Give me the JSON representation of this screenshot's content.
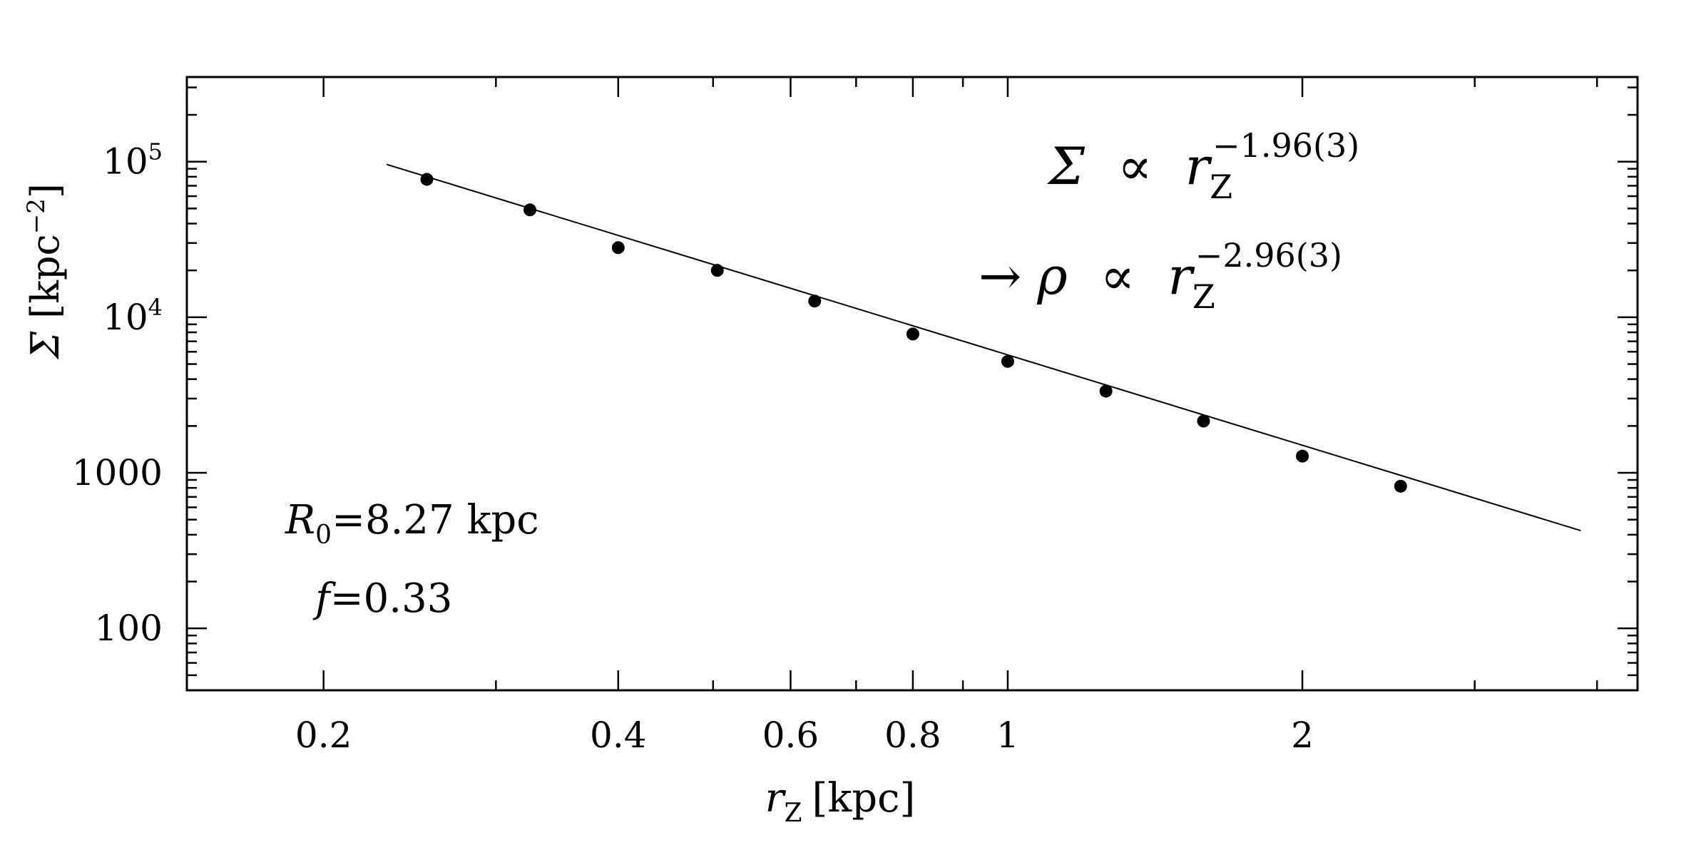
{
  "chart_data": {
    "type": "scatter",
    "xscale": "log",
    "yscale": "log",
    "xlim": [
      0.145,
      4.4
    ],
    "ylim": [
      40,
      350000
    ],
    "x_tick_labels": [
      {
        "value": 0.2,
        "label": "0.2"
      },
      {
        "value": 0.4,
        "label": "0.4"
      },
      {
        "value": 0.6,
        "label": "0.6"
      },
      {
        "value": 0.8,
        "label": "0.8"
      },
      {
        "value": 1,
        "label": "1"
      },
      {
        "value": 2,
        "label": "2"
      }
    ],
    "y_tick_labels": [
      {
        "value": 100,
        "label": "100"
      },
      {
        "value": 1000,
        "label": "1000"
      },
      {
        "value": 10000,
        "base": "10",
        "exp": "4"
      },
      {
        "value": 100000,
        "base": "10",
        "exp": "5"
      }
    ],
    "xlabel": {
      "var": "r",
      "sub": "Z",
      "unit": "[kpc]"
    },
    "ylabel": {
      "var": "Σ",
      "unit": "[kpc",
      "exp": "−2",
      "close": "]"
    },
    "points": [
      {
        "x": 0.255,
        "y": 77000
      },
      {
        "x": 0.325,
        "y": 49000
      },
      {
        "x": 0.4,
        "y": 28000
      },
      {
        "x": 0.505,
        "y": 20000
      },
      {
        "x": 0.635,
        "y": 12700
      },
      {
        "x": 0.8,
        "y": 7800
      },
      {
        "x": 1.0,
        "y": 5200
      },
      {
        "x": 1.26,
        "y": 3350
      },
      {
        "x": 1.585,
        "y": 2150
      },
      {
        "x": 2.0,
        "y": 1280
      },
      {
        "x": 2.52,
        "y": 820
      }
    ],
    "fit_line": {
      "x": [
        0.232,
        3.85
      ],
      "y": [
        96000,
        425
      ]
    },
    "annotations": {
      "fit1": {
        "lhs": "Σ",
        "prop": "∝",
        "var": "r",
        "sub": "Z",
        "exp": "−1.96(3)"
      },
      "fit2": {
        "arrow": "→",
        "lhs": "ρ",
        "prop": "∝",
        "var": "r",
        "sub": "Z",
        "exp": "−2.96(3)"
      },
      "param1": {
        "var": "R",
        "sub": "0",
        "text": "=8.27  kpc"
      },
      "param2": {
        "var": "f",
        "text": "=0.33"
      }
    },
    "grid": false,
    "legend": "none",
    "marker_color": "#000000",
    "line_color": "#000000"
  }
}
